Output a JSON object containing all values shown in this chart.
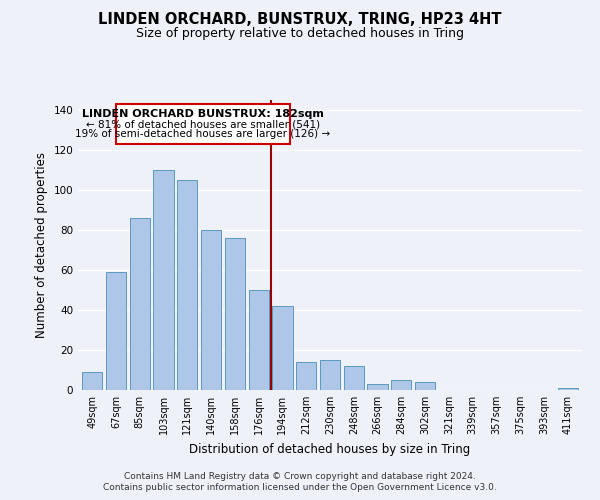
{
  "title": "LINDEN ORCHARD, BUNSTRUX, TRING, HP23 4HT",
  "subtitle": "Size of property relative to detached houses in Tring",
  "xlabel": "Distribution of detached houses by size in Tring",
  "ylabel": "Number of detached properties",
  "footnote1": "Contains HM Land Registry data © Crown copyright and database right 2024.",
  "footnote2": "Contains public sector information licensed under the Open Government Licence v3.0.",
  "bar_labels": [
    "49sqm",
    "67sqm",
    "85sqm",
    "103sqm",
    "121sqm",
    "140sqm",
    "158sqm",
    "176sqm",
    "194sqm",
    "212sqm",
    "230sqm",
    "248sqm",
    "266sqm",
    "284sqm",
    "302sqm",
    "321sqm",
    "339sqm",
    "357sqm",
    "375sqm",
    "393sqm",
    "411sqm"
  ],
  "bar_values": [
    9,
    59,
    86,
    110,
    105,
    80,
    76,
    50,
    42,
    14,
    15,
    12,
    3,
    5,
    4,
    0,
    0,
    0,
    0,
    0,
    1
  ],
  "bar_color": "#aec6e8",
  "bar_edge_color": "#5a9abf",
  "reference_line_label": "LINDEN ORCHARD BUNSTRUX: 182sqm",
  "annotation_line1": "← 81% of detached houses are smaller (541)",
  "annotation_line2": "19% of semi-detached houses are larger (126) →",
  "annotation_box_color": "#ffffff",
  "annotation_box_edge": "#cc0000",
  "reference_line_color": "#990000",
  "ylim": [
    0,
    145
  ],
  "background_color": "#eef2f8",
  "grid_color": "#ffffff",
  "title_fontsize": 10.5,
  "subtitle_fontsize": 9,
  "axis_label_fontsize": 8.5,
  "tick_fontsize": 7,
  "annotation_fontsize": 8,
  "footnote_fontsize": 6.5
}
